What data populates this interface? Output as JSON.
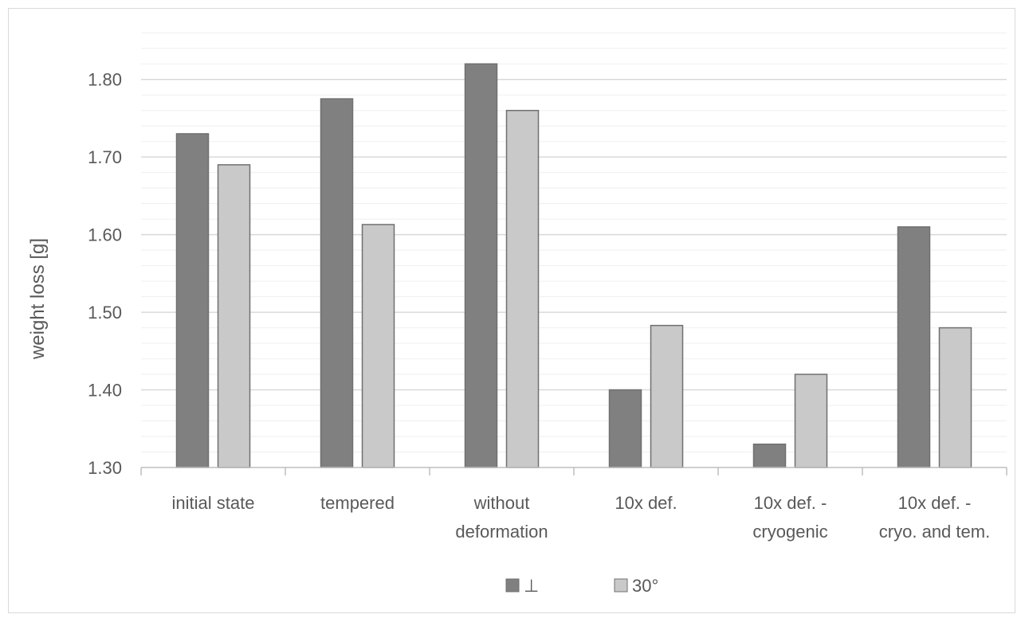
{
  "chart_data": {
    "type": "bar",
    "title": "",
    "xlabel": "",
    "ylabel": "weight loss [g]",
    "ylim": [
      1.3,
      1.85
    ],
    "yticks": [
      "1.30",
      "1.40",
      "1.50",
      "1.60",
      "1.70",
      "1.80"
    ],
    "ytick_values": [
      1.3,
      1.4,
      1.5,
      1.6,
      1.7,
      1.8
    ],
    "minor_grid_step": 0.02,
    "grid": true,
    "legend_position": "bottom",
    "categories": [
      [
        "initial state"
      ],
      [
        "tempered"
      ],
      [
        "without",
        "deformation"
      ],
      [
        "10x def."
      ],
      [
        "10x def. -",
        "cryogenic"
      ],
      [
        "10x def. -",
        "cryo. and tem."
      ]
    ],
    "series": [
      {
        "name": "⊥",
        "color": "#808080",
        "values": [
          1.73,
          1.775,
          1.82,
          1.4,
          1.33,
          1.61
        ]
      },
      {
        "name": "30°",
        "color": "#c9c9c9",
        "values": [
          1.69,
          1.613,
          1.76,
          1.483,
          1.42,
          1.48
        ]
      }
    ]
  }
}
